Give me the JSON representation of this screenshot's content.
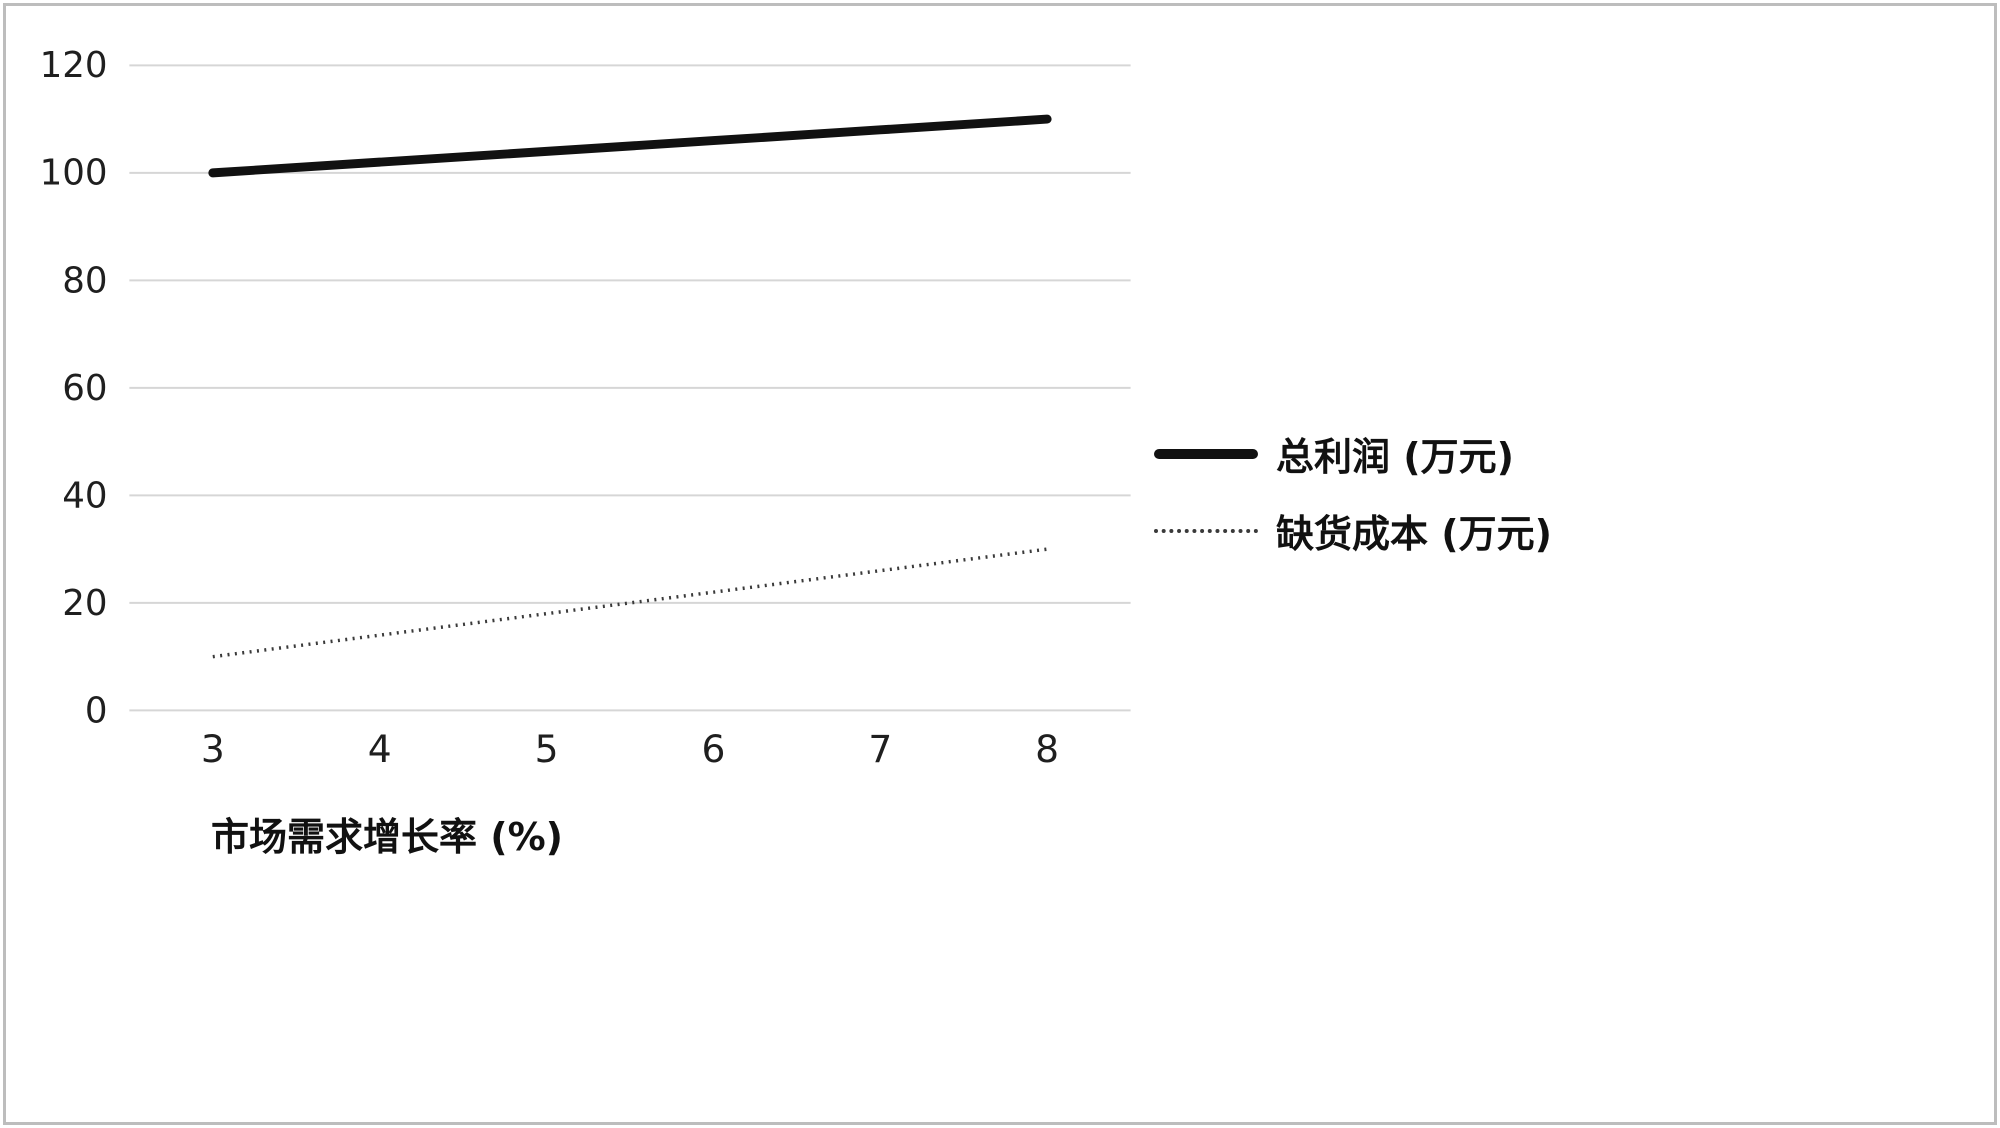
{
  "chart_data": {
    "type": "line",
    "x": [
      3,
      4,
      5,
      6,
      7,
      8
    ],
    "x_tick_labels": [
      "3",
      "4",
      "5",
      "6",
      "7",
      "8"
    ],
    "series": [
      {
        "name": "总利润 (万元)",
        "values": [
          100,
          102,
          104,
          106,
          108,
          110
        ],
        "line_style": "solid-thick",
        "color": "#111111"
      },
      {
        "name": "缺货成本 (万元)",
        "values": [
          10,
          14,
          18,
          22,
          26,
          30
        ],
        "line_style": "dotted",
        "color": "#3a3a3a"
      }
    ],
    "xlabel": "市场需求增长率 (%)",
    "title": "",
    "ylim": [
      0,
      120
    ],
    "ytick_step": 20,
    "y_tick_labels": [
      "0",
      "20",
      "40",
      "60",
      "80",
      "100",
      "120"
    ],
    "grid": true,
    "legend_position": "right-middle"
  },
  "colors": {
    "background": "#ffffff",
    "border": "#bdbdbd",
    "gridline": "#d6d6d6",
    "tick_text": "#1f1f1f"
  }
}
